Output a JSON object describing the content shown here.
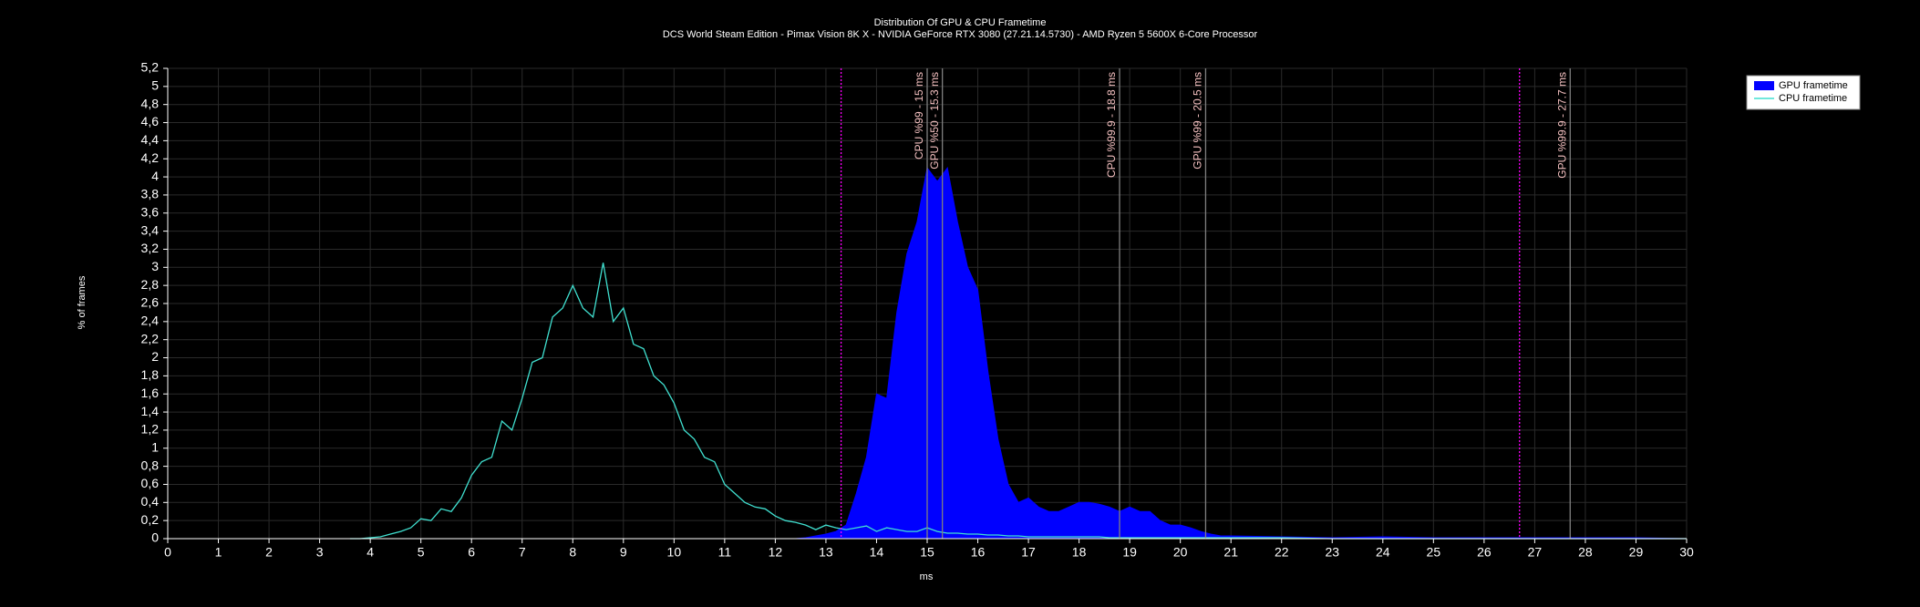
{
  "chart_data": {
    "type": "area_line",
    "title": "Distribution Of GPU & CPU Frametime",
    "subtitle": "DCS World Steam Edition - Pimax Vision 8K X - NVIDIA GeForce RTX 3080 (27.21.14.5730) - AMD Ryzen 5 5600X 6-Core Processor",
    "x_label": "ms",
    "y_label": "% of frames",
    "xlim": [
      0,
      30
    ],
    "xticks": [
      0,
      1,
      2,
      3,
      4,
      5,
      6,
      7,
      8,
      9,
      10,
      11,
      12,
      13,
      14,
      15,
      16,
      17,
      18,
      19,
      20,
      21,
      22,
      23,
      24,
      25,
      26,
      27,
      28,
      29,
      30
    ],
    "ylim": [
      0,
      5.2
    ],
    "yticks": [
      0,
      {
        "value": 0.2,
        "label": "0,2"
      },
      {
        "value": 0.4,
        "label": "0,4"
      },
      {
        "value": 0.6,
        "label": "0,6"
      },
      {
        "value": 0.8,
        "label": "0,8"
      },
      1,
      {
        "value": 1.2,
        "label": "1,2"
      },
      {
        "value": 1.4,
        "label": "1,4"
      },
      {
        "value": 1.6,
        "label": "1,6"
      },
      {
        "value": 1.8,
        "label": "1,8"
      },
      2,
      {
        "value": 2.2,
        "label": "2,2"
      },
      {
        "value": 2.4,
        "label": "2,4"
      },
      {
        "value": 2.6,
        "label": "2,6"
      },
      {
        "value": 2.8,
        "label": "2,8"
      },
      3,
      {
        "value": 3.2,
        "label": "3,2"
      },
      {
        "value": 3.4,
        "label": "3,4"
      },
      {
        "value": 3.6,
        "label": "3,6"
      },
      {
        "value": 3.8,
        "label": "3,8"
      },
      4,
      {
        "value": 4.2,
        "label": "4,2"
      },
      {
        "value": 4.4,
        "label": "4,4"
      },
      {
        "value": 4.6,
        "label": "4,6"
      },
      {
        "value": 4.8,
        "label": "4,8"
      },
      5,
      {
        "value": 5.2,
        "label": "5,2"
      }
    ],
    "grid": true,
    "legend": "top-right",
    "x": [
      3.6,
      3.8,
      4.0,
      4.2,
      4.4,
      4.6,
      4.8,
      5.0,
      5.2,
      5.4,
      5.6,
      5.8,
      6.0,
      6.2,
      6.4,
      6.6,
      6.8,
      7.0,
      7.2,
      7.4,
      7.6,
      7.8,
      8.0,
      8.2,
      8.4,
      8.6,
      8.8,
      9.0,
      9.2,
      9.4,
      9.6,
      9.8,
      10.0,
      10.2,
      10.4,
      10.6,
      10.8,
      11.0,
      11.2,
      11.4,
      11.6,
      11.8,
      12.0,
      12.2,
      12.4,
      12.6,
      12.8,
      13.0,
      13.2,
      13.4,
      13.6,
      13.8,
      14.0,
      14.2,
      14.4,
      14.6,
      14.8,
      15.0,
      15.2,
      15.4,
      15.6,
      15.8,
      16.0,
      16.2,
      16.4,
      16.6,
      16.8,
      17.0,
      17.2,
      17.4,
      17.6,
      17.8,
      18.0,
      18.2,
      18.4,
      18.6,
      18.8,
      19.0,
      19.2,
      19.4,
      19.6,
      19.8,
      20.0,
      20.2,
      20.4,
      20.6,
      20.8,
      21.0,
      22,
      23,
      24,
      25,
      26,
      27,
      28,
      29,
      30
    ],
    "series": [
      {
        "name": "GPU frametime",
        "color": "#0000ff",
        "kind": "area",
        "values": [
          0,
          0,
          0,
          0,
          0,
          0,
          0,
          0,
          0,
          0,
          0,
          0,
          0,
          0,
          0,
          0,
          0,
          0,
          0,
          0,
          0,
          0,
          0,
          0,
          0,
          0,
          0,
          0,
          0,
          0,
          0,
          0,
          0,
          0,
          0,
          0,
          0,
          0,
          0,
          0,
          0,
          0,
          0,
          0,
          0,
          0.01,
          0.03,
          0.05,
          0.08,
          0.15,
          0.5,
          0.9,
          1.6,
          1.55,
          2.5,
          3.15,
          3.5,
          4.1,
          3.95,
          4.1,
          3.5,
          3.0,
          2.75,
          1.85,
          1.1,
          0.6,
          0.4,
          0.45,
          0.35,
          0.3,
          0.3,
          0.35,
          0.4,
          0.4,
          0.38,
          0.35,
          0.3,
          0.35,
          0.3,
          0.3,
          0.2,
          0.15,
          0.15,
          0.12,
          0.08,
          0.05,
          0.03,
          0.03,
          0.02,
          0.01,
          0.02,
          0.01,
          0.01,
          0.01,
          0.01,
          0.01,
          0
        ]
      },
      {
        "name": "CPU frametime",
        "color": "#40e0d0",
        "kind": "line",
        "values": [
          0,
          0,
          0.01,
          0.02,
          0.05,
          0.08,
          0.12,
          0.22,
          0.2,
          0.33,
          0.3,
          0.45,
          0.7,
          0.85,
          0.9,
          1.3,
          1.2,
          1.55,
          1.95,
          2.0,
          2.45,
          2.55,
          2.8,
          2.55,
          2.45,
          3.05,
          2.4,
          2.55,
          2.15,
          2.1,
          1.8,
          1.7,
          1.5,
          1.2,
          1.1,
          0.9,
          0.85,
          0.6,
          0.5,
          0.4,
          0.35,
          0.33,
          0.25,
          0.2,
          0.18,
          0.15,
          0.1,
          0.15,
          0.12,
          0.1,
          0.12,
          0.14,
          0.08,
          0.12,
          0.1,
          0.08,
          0.08,
          0.12,
          0.08,
          0.06,
          0.06,
          0.05,
          0.05,
          0.04,
          0.04,
          0.03,
          0.03,
          0.02,
          0.02,
          0.02,
          0.02,
          0.02,
          0.02,
          0.02,
          0.02,
          0.01,
          0.01,
          0.01,
          0.01,
          0.01,
          0.01,
          0.01,
          0.01,
          0.01,
          0.01,
          0.01,
          0.01,
          0.01,
          0.01,
          0,
          0,
          0,
          0,
          0,
          0,
          0,
          0
        ]
      }
    ],
    "dotted_lines": {
      "color": "#ff00ff",
      "x": [
        13.3,
        26.7
      ]
    },
    "reference_lines": [
      {
        "x": 15,
        "label": "CPU %99 - 15 ms"
      },
      {
        "x": 15.3,
        "label": "GPU %50 - 15.3 ms"
      },
      {
        "x": 18.8,
        "label": "CPU %99.9 - 18.8 ms"
      },
      {
        "x": 20.5,
        "label": "GPU %99 - 20.5 ms"
      },
      {
        "x": 27.7,
        "label": "GPU %99.9 - 27.7 ms"
      }
    ]
  }
}
